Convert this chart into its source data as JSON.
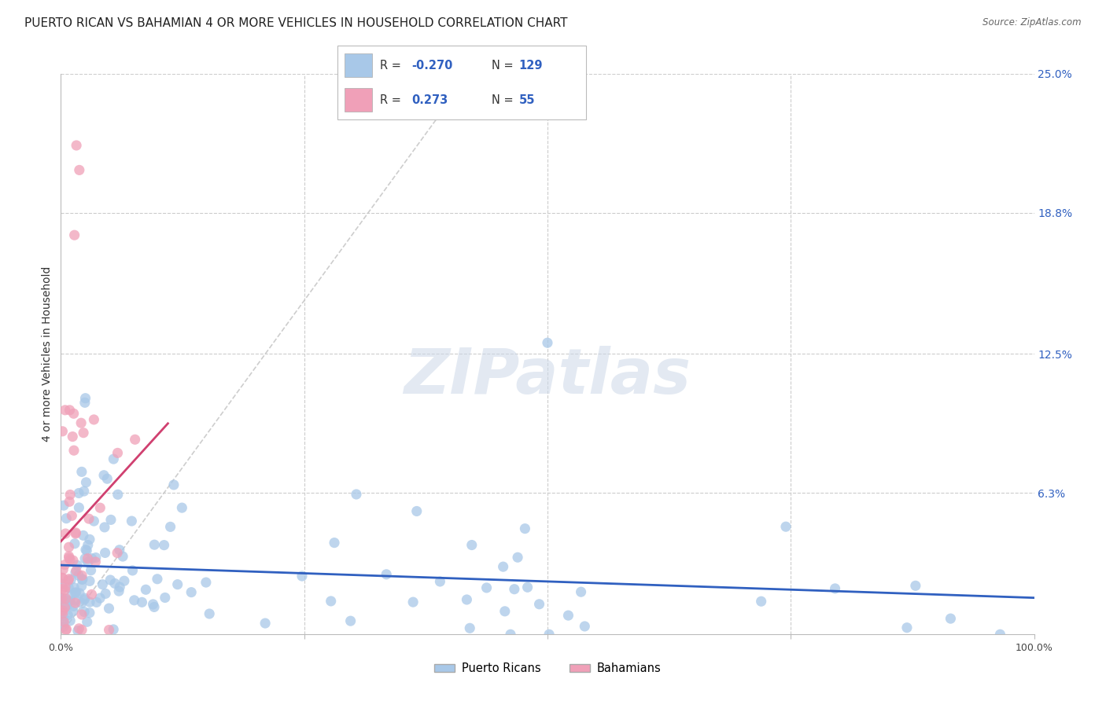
{
  "title": "PUERTO RICAN VS BAHAMIAN 4 OR MORE VEHICLES IN HOUSEHOLD CORRELATION CHART",
  "source": "Source: ZipAtlas.com",
  "ylabel": "4 or more Vehicles in Household",
  "xlim": [
    0,
    1.0
  ],
  "ylim": [
    0,
    0.25
  ],
  "ytick_labels_right": [
    "25.0%",
    "18.8%",
    "12.5%",
    "6.3%"
  ],
  "ytick_vals_right": [
    0.25,
    0.188,
    0.125,
    0.063
  ],
  "blue_scatter_color": "#a8c8e8",
  "pink_scatter_color": "#f0a0b8",
  "blue_line_color": "#3060c0",
  "pink_line_color": "#d04070",
  "diag_line_color": "#c8c8c8",
  "blue_r": -0.27,
  "blue_n": 129,
  "pink_r": 0.273,
  "pink_n": 55,
  "legend_label_blue": "Puerto Ricans",
  "legend_label_pink": "Bahamians",
  "background_color": "#ffffff",
  "grid_color": "#cccccc",
  "watermark_text": "ZIPatlas",
  "title_fontsize": 11,
  "axis_label_fontsize": 10,
  "tick_label_fontsize": 9,
  "right_tick_color": "#3060c0"
}
